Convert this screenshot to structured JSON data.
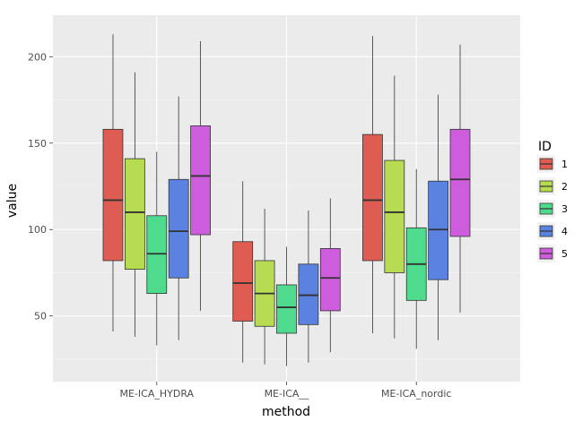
{
  "chart_data": {
    "type": "boxplot",
    "title": "",
    "xlabel": "method",
    "ylabel": "value",
    "categories": [
      "ME-ICA_HYDRA",
      "ME-ICA__",
      "ME-ICA_nordic"
    ],
    "ylim": [
      12,
      224
    ],
    "yticks": [
      50,
      100,
      150,
      200
    ],
    "ytick_labels": [
      "50",
      "100",
      "150",
      "200"
    ],
    "grid": true,
    "legend": {
      "title": "ID",
      "position": "right",
      "entries": [
        "1",
        "2",
        "3",
        "4",
        "5"
      ]
    },
    "series": [
      {
        "name": "1",
        "color": "#df5c52",
        "boxes": [
          {
            "min": 41,
            "q1": 82,
            "median": 117,
            "q3": 158,
            "max": 213
          },
          {
            "min": 23,
            "q1": 47,
            "median": 69,
            "q3": 93,
            "max": 128
          },
          {
            "min": 40,
            "q1": 82,
            "median": 117,
            "q3": 155,
            "max": 212
          }
        ]
      },
      {
        "name": "2",
        "color": "#b8dc51",
        "boxes": [
          {
            "min": 38,
            "q1": 77,
            "median": 110,
            "q3": 141,
            "max": 191
          },
          {
            "min": 22,
            "q1": 44,
            "median": 63,
            "q3": 82,
            "max": 112
          },
          {
            "min": 37,
            "q1": 75,
            "median": 110,
            "q3": 140,
            "max": 189
          }
        ]
      },
      {
        "name": "3",
        "color": "#4fdb8d",
        "boxes": [
          {
            "min": 33,
            "q1": 63,
            "median": 86,
            "q3": 108,
            "max": 145
          },
          {
            "min": 21,
            "q1": 40,
            "median": 55,
            "q3": 68,
            "max": 90
          },
          {
            "min": 31,
            "q1": 59,
            "median": 80,
            "q3": 101,
            "max": 135
          }
        ]
      },
      {
        "name": "4",
        "color": "#5a82e0",
        "boxes": [
          {
            "min": 36,
            "q1": 72,
            "median": 99,
            "q3": 129,
            "max": 177
          },
          {
            "min": 23,
            "q1": 45,
            "median": 62,
            "q3": 80,
            "max": 111
          },
          {
            "min": 36,
            "q1": 71,
            "median": 100,
            "q3": 128,
            "max": 178
          }
        ]
      },
      {
        "name": "5",
        "color": "#cd5ddc",
        "boxes": [
          {
            "min": 53,
            "q1": 97,
            "median": 131,
            "q3": 160,
            "max": 209
          },
          {
            "min": 29,
            "q1": 53,
            "median": 72,
            "q3": 89,
            "max": 118
          },
          {
            "min": 52,
            "q1": 96,
            "median": 129,
            "q3": 158,
            "max": 207
          }
        ]
      }
    ]
  }
}
